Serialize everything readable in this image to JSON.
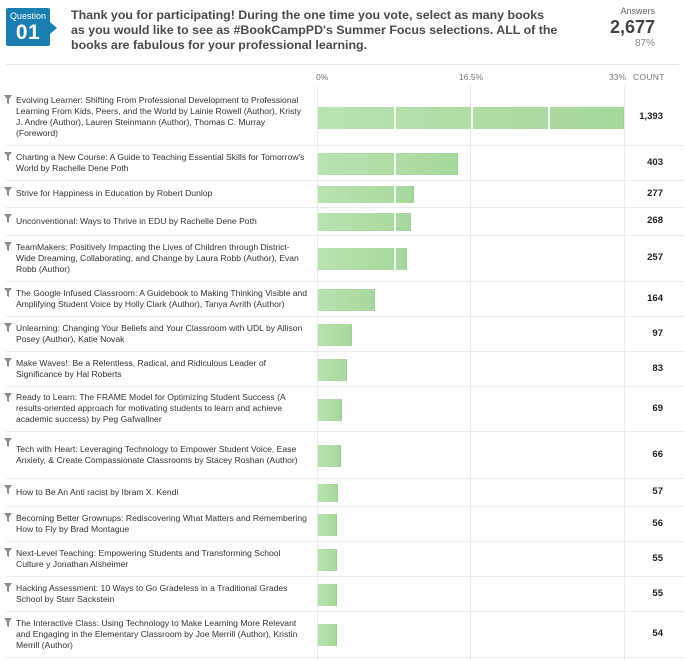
{
  "question": {
    "label": "Question",
    "number": "01",
    "text": "Thank you for participating! During the one time you vote, select as many books as you would like to see as #BookCampPD's Summer Focus selections. ALL of the books are fabulous for your professional learning."
  },
  "answers": {
    "label": "Answers",
    "count": "2,677",
    "percent": "87%"
  },
  "colors": {
    "badge": "#1a7fb0",
    "bar": "#b2dfa8"
  },
  "chart_data": {
    "type": "bar",
    "orientation": "horizontal",
    "x_ticks": [
      "0%",
      "16.5%",
      "33%"
    ],
    "xlim_percent": [
      0,
      33
    ],
    "count_header": "COUNT",
    "total_respondents": 2677,
    "categories": [
      "Evolving Learner: Shifting From Professional Development to Professional Learning From Kids, Peers, and the World by Lainie Rowell (Author), Kristy J. Andre (Author), Lauren Steinmann (Author), Thomas C. Murray (Foreword)",
      "Charting a New Course: A Guide to Teaching Essential Skills for Tomorrow's World by Rachelle Dene Poth",
      "Strive for Happiness in Education by Robert Dunlop",
      "Unconventional: Ways to Thrive in EDU by Rachelle Dene Poth",
      "TeamMakers: Positively Impacting the Lives of Children through District-Wide Dreaming, Collaborating, and Change by Laura Robb (Author), Evan Robb (Author)",
      "The Google Infused Classroom: A Guidebook to Making Thinking Visible and Amplifying Student Voice by Holly Clark (Author), Tanya Avrith (Author)",
      "Unlearning: Changing Your Beliefs and Your Classroom with UDL by Allison Posey (Author), Katie Novak",
      "Make Waves!: Be a Relentless, Radical, and Ridiculous Leader of Significance by Hal Roberts",
      "Ready to Learn: The FRAME Model for Optimizing Student Success (A results-oriented approach for motivating students to learn and achieve academic success) by Peg Gafwallner",
      "Tech with Heart: Leveraging Technology to Empower Student Voice, Ease Anxiety, & Create Compassionate Classrooms by Stacey Roshan (Author)",
      "How to Be An Anti racist by Ibram X. Kendi",
      "Becoming Better Grownups: Rediscovering What Matters and Remembering How to Fly by Brad Montague",
      "Next-Level Teaching: Empowering Students and Transforming School Culture y Jonathan Alsheimer",
      "Hacking Assessment: 10 Ways to Go Gradeless in a Traditional Grades School by Starr Sackstein",
      "The Interactive Class: Using Technology to Make Learning More Relevant and Engaging in the Elementary Classroom by Joe Merrill (Author), Kristin Merrill (Author)"
    ],
    "values": [
      1393,
      403,
      277,
      268,
      257,
      164,
      97,
      83,
      69,
      66,
      57,
      56,
      55,
      55,
      54
    ],
    "value_labels": [
      "1,393",
      "403",
      "277",
      "268",
      "257",
      "164",
      "97",
      "83",
      "69",
      "66",
      "57",
      "56",
      "55",
      "55",
      "54"
    ]
  }
}
